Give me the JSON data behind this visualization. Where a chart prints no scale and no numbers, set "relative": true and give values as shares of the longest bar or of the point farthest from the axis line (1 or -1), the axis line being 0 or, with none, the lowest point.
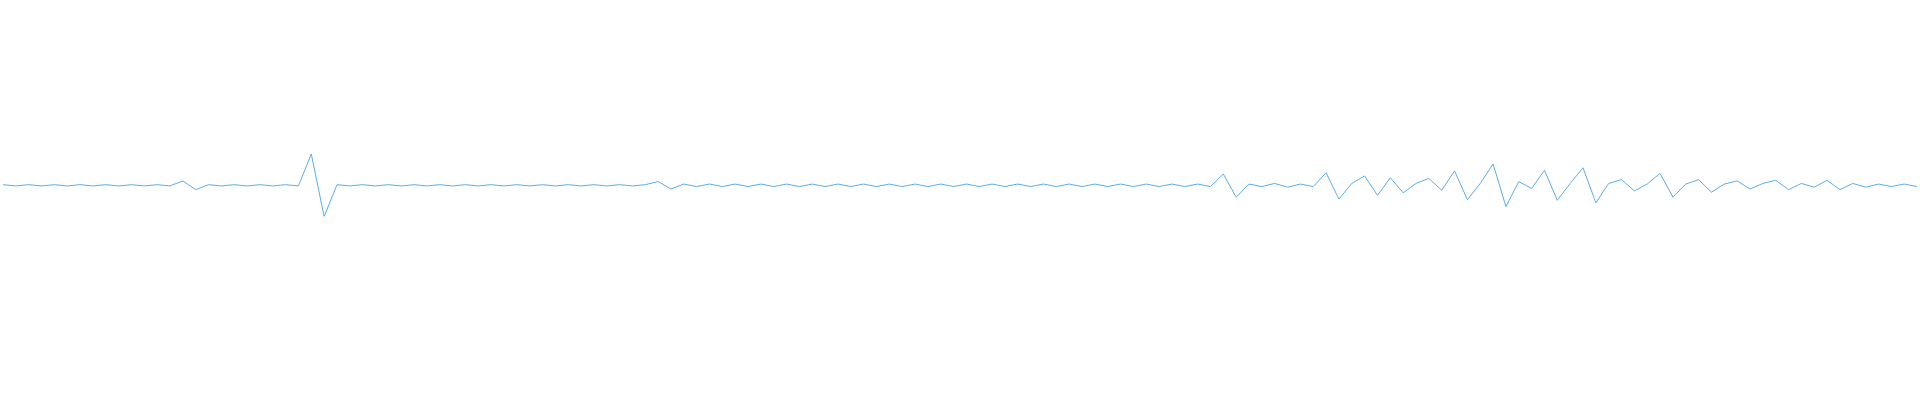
{
  "chart_data": {
    "type": "line",
    "relative": true,
    "marker": "none",
    "grid": false,
    "legend": false,
    "categories": [
      null,
      null,
      null,
      null,
      null,
      null,
      null,
      null,
      null,
      null,
      null,
      null,
      null,
      null,
      null,
      null,
      null,
      null,
      null,
      null,
      null,
      null,
      null,
      null,
      null,
      null,
      null,
      null,
      null,
      null,
      null,
      null,
      null,
      null,
      null,
      null,
      null,
      null,
      null,
      null,
      null,
      null,
      null,
      null,
      null,
      null,
      null,
      null,
      null,
      null,
      null,
      null,
      null,
      null,
      null,
      null,
      null,
      null,
      null,
      null,
      null,
      null,
      null,
      null,
      null,
      null,
      null,
      null,
      null,
      null,
      null,
      null,
      null,
      null,
      null,
      null,
      null,
      null,
      null,
      null,
      null,
      null,
      null,
      null,
      null,
      null,
      null,
      null,
      null,
      null,
      null,
      null,
      null,
      null,
      null,
      null,
      null,
      null,
      null,
      null,
      null,
      null,
      null,
      null,
      null,
      null,
      null,
      null,
      null,
      null,
      null,
      null,
      null,
      null,
      null,
      null,
      null,
      null,
      null,
      null,
      null,
      null,
      null,
      null,
      null,
      null,
      null,
      null,
      null,
      null,
      null,
      null,
      null,
      null,
      null,
      null,
      null,
      null,
      null,
      null,
      null,
      null,
      null,
      null,
      null,
      null,
      null,
      null,
      null,
      null
    ],
    "series": [
      {
        "color": "#5aaee8",
        "values": [
          0.51,
          0.49,
          0.51,
          0.49,
          0.51,
          0.49,
          0.51,
          0.49,
          0.51,
          0.49,
          0.51,
          0.49,
          0.51,
          0.49,
          0.57,
          0.43,
          0.51,
          0.49,
          0.51,
          0.49,
          0.51,
          0.49,
          0.51,
          0.49,
          1,
          0,
          0.51,
          0.49,
          0.51,
          0.49,
          0.51,
          0.49,
          0.51,
          0.49,
          0.51,
          0.49,
          0.51,
          0.49,
          0.51,
          0.49,
          0.51,
          0.49,
          0.51,
          0.49,
          0.51,
          0.49,
          0.51,
          0.49,
          0.51,
          0.49,
          0.51,
          0.56,
          0.44,
          0.52,
          0.48,
          0.52,
          0.48,
          0.52,
          0.48,
          0.52,
          0.48,
          0.52,
          0.48,
          0.52,
          0.48,
          0.52,
          0.48,
          0.52,
          0.48,
          0.52,
          0.48,
          0.52,
          0.48,
          0.52,
          0.48,
          0.52,
          0.48,
          0.52,
          0.48,
          0.52,
          0.48,
          0.52,
          0.48,
          0.52,
          0.48,
          0.52,
          0.48,
          0.52,
          0.48,
          0.52,
          0.48,
          0.52,
          0.48,
          0.52,
          0.48,
          0.68,
          0.31,
          0.52,
          0.48,
          0.53,
          0.47,
          0.52,
          0.48,
          0.7,
          0.28,
          0.53,
          0.65,
          0.34,
          0.62,
          0.38,
          0.53,
          0.61,
          0.42,
          0.73,
          0.27,
          0.53,
          0.84,
          0.16,
          0.56,
          0.45,
          0.74,
          0.26,
          0.53,
          0.78,
          0.22,
          0.53,
          0.59,
          0.41,
          0.52,
          0.69,
          0.31,
          0.52,
          0.59,
          0.39,
          0.52,
          0.57,
          0.44,
          0.53,
          0.58,
          0.43,
          0.53,
          0.47,
          0.58,
          0.43,
          0.53,
          0.47,
          0.52,
          0.48,
          0.52,
          0.48
        ]
      }
    ]
  }
}
